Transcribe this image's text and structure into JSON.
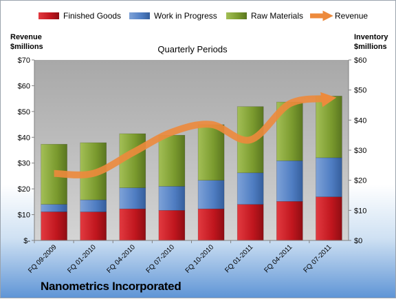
{
  "chart_data": {
    "type": "bar",
    "stacked": true,
    "title": "Nanometrics Incorporated",
    "subtitle": "Quarterly Periods",
    "categories": [
      "FQ 09-2009",
      "FQ 01-2010",
      "FQ 04-2010",
      "FQ 07-2010",
      "FQ 10-2010",
      "FQ 01-2011",
      "FQ 04-2011",
      "FQ 07-2011"
    ],
    "y_left_label": [
      "Revenue",
      "$millions"
    ],
    "y_right_label": [
      "Inventory",
      "$millions"
    ],
    "y_left": {
      "min": 0,
      "max": 70,
      "step": 10,
      "format": "currency"
    },
    "y_right": {
      "min": 0,
      "max": 60,
      "step": 10,
      "format": "currency"
    },
    "y_left_ticks": [
      "$-",
      "$10",
      "$20",
      "$30",
      "$40",
      "$50",
      "$60",
      "$70"
    ],
    "y_right_ticks": [
      "$0",
      "$10",
      "$20",
      "$30",
      "$40",
      "$50",
      "$60"
    ],
    "series": [
      {
        "name": "Finished Goods",
        "axis": "right",
        "color": "#c0161e",
        "values": [
          9.5,
          9.5,
          10.5,
          10,
          10.5,
          12,
          13,
          14.5
        ]
      },
      {
        "name": "Work in Progress",
        "axis": "right",
        "color": "#4f7dc2",
        "values": [
          2.5,
          4,
          7,
          8,
          9.5,
          10.5,
          13.5,
          13
        ]
      },
      {
        "name": "Raw Materials",
        "axis": "right",
        "color": "#7a9a2e",
        "values": [
          20,
          19,
          18,
          17,
          18.5,
          22,
          19.5,
          20.5
        ]
      },
      {
        "name": "Revenue",
        "axis": "left",
        "type": "line",
        "color": "#ed8a3c",
        "values": [
          26,
          26,
          34,
          42,
          45,
          39,
          53,
          55
        ]
      }
    ],
    "legend_position": "top",
    "grid": false,
    "plot_background": "#b9b9b9"
  }
}
